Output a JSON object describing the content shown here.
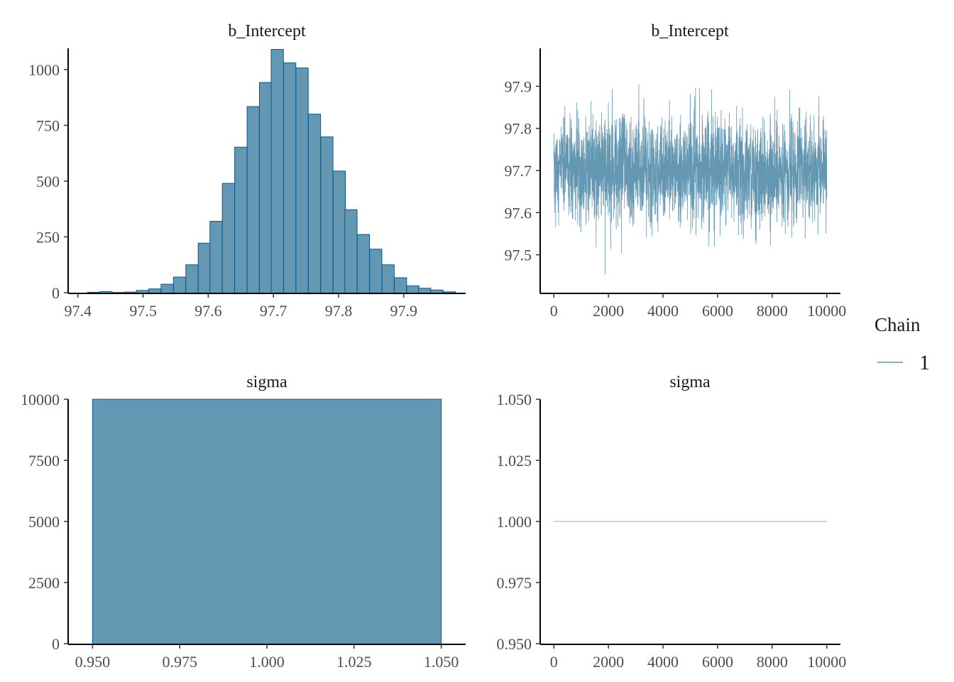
{
  "colors": {
    "fill": "#6497b1",
    "edge": "#005b96",
    "trace": "#6497b1"
  },
  "legend": {
    "title": "Chain",
    "items": [
      "1"
    ]
  },
  "chart_data": [
    {
      "type": "bar",
      "title": "b_Intercept",
      "x_ticks": [
        97.4,
        97.5,
        97.6,
        97.7,
        97.8,
        97.9
      ],
      "x_tick_labels": [
        "97.4",
        "97.5",
        "97.6",
        "97.7",
        "97.8",
        "97.9"
      ],
      "y_ticks": [
        0,
        250,
        500,
        750,
        1000
      ],
      "y_tick_labels": [
        "0",
        "250",
        "500",
        "750",
        "1000"
      ],
      "xlim": [
        97.385,
        97.995
      ],
      "ylim": [
        0,
        1095
      ],
      "bin_width": 0.01882,
      "bin_centers": [
        97.424,
        97.443,
        97.462,
        97.481,
        97.499,
        97.518,
        97.537,
        97.556,
        97.575,
        97.594,
        97.612,
        97.631,
        97.65,
        97.669,
        97.688,
        97.706,
        97.725,
        97.744,
        97.763,
        97.782,
        97.801,
        97.819,
        97.838,
        97.857,
        97.876,
        97.895,
        97.914,
        97.932,
        97.951,
        97.97
      ],
      "counts": [
        2,
        5,
        1,
        3,
        10,
        17,
        38,
        70,
        125,
        222,
        320,
        490,
        652,
        834,
        942,
        1090,
        1030,
        1007,
        800,
        698,
        545,
        372,
        261,
        195,
        125,
        67,
        31,
        20,
        12,
        4
      ]
    },
    {
      "type": "line",
      "title": "b_Intercept",
      "x_ticks": [
        0,
        2000,
        4000,
        6000,
        8000,
        10000
      ],
      "x_tick_labels": [
        "0",
        "2000",
        "4000",
        "6000",
        "8000",
        "10000"
      ],
      "y_ticks": [
        97.5,
        97.6,
        97.7,
        97.8,
        97.9
      ],
      "y_tick_labels": [
        "97.5",
        "97.6",
        "97.7",
        "97.8",
        "97.9"
      ],
      "xlim": [
        -500,
        10500
      ],
      "ylim": [
        97.41,
        97.99
      ],
      "series": [
        {
          "name": "1",
          "x_range": [
            1,
            10000
          ],
          "mean": 97.7,
          "sd": 0.062,
          "min": 97.43,
          "max": 97.96
        }
      ]
    },
    {
      "type": "bar",
      "title": "sigma",
      "x_ticks": [
        0.95,
        0.975,
        1.0,
        1.025,
        1.05
      ],
      "x_tick_labels": [
        "0.950",
        "0.975",
        "1.000",
        "1.025",
        "1.050"
      ],
      "y_ticks": [
        0,
        2500,
        5000,
        7500,
        10000
      ],
      "y_tick_labels": [
        "0",
        "2500",
        "5000",
        "7500",
        "10000"
      ],
      "xlim": [
        0.943,
        1.057
      ],
      "ylim": [
        0,
        10000
      ],
      "bin_width": 0.1,
      "bin_centers": [
        1.0
      ],
      "counts": [
        10000
      ]
    },
    {
      "type": "line",
      "title": "sigma",
      "x_ticks": [
        0,
        2000,
        4000,
        6000,
        8000,
        10000
      ],
      "x_tick_labels": [
        "0",
        "2000",
        "4000",
        "6000",
        "8000",
        "10000"
      ],
      "y_ticks": [
        0.95,
        0.975,
        1.0,
        1.025,
        1.05
      ],
      "y_tick_labels": [
        "0.950",
        "0.975",
        "1.000",
        "1.025",
        "1.050"
      ],
      "xlim": [
        -500,
        10500
      ],
      "ylim": [
        0.95,
        1.05
      ],
      "series": [
        {
          "name": "1",
          "x_range": [
            1,
            10000
          ],
          "constant": 1.0
        }
      ]
    }
  ]
}
